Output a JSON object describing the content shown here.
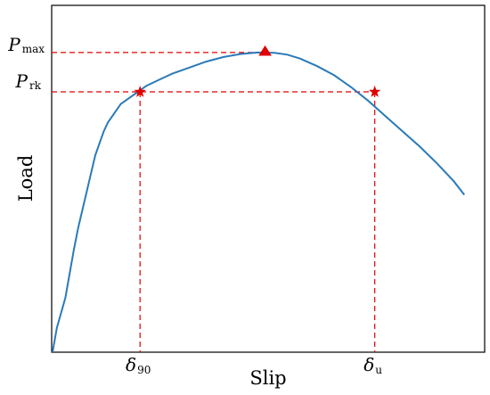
{
  "chart_data": {
    "type": "line",
    "title": "",
    "xlabel": "Slip",
    "ylabel": "Load",
    "xlim": [
      0,
      100
    ],
    "ylim": [
      0,
      100
    ],
    "grid": false,
    "legend": "none",
    "series": [
      {
        "color": "#2a7ab8",
        "x": [
          0,
          1,
          2,
          3,
          4,
          5,
          6,
          7,
          8,
          9,
          10,
          11,
          12,
          13,
          14,
          15,
          16,
          18,
          20,
          22,
          25,
          28,
          30,
          33,
          36,
          40,
          44,
          48,
          52,
          55,
          58,
          62,
          66,
          70,
          74,
          78,
          82,
          86,
          90,
          94,
          96.5
        ],
        "y": [
          0,
          8,
          13,
          18,
          26,
          34,
          41,
          47,
          53,
          59,
          65,
          69,
          73,
          76,
          78,
          80,
          82,
          84,
          86,
          88,
          90,
          92,
          93,
          94.5,
          96,
          97.5,
          98.5,
          99,
          98.9,
          98.3,
          97,
          94.5,
          91.5,
          87.5,
          83,
          78,
          73,
          68,
          62.5,
          56.5,
          52
        ]
      }
    ],
    "annotations": {
      "p_max": {
        "symbol": "P",
        "subscript": "max",
        "x": 49.8,
        "y": 99,
        "marker": "triangle",
        "color": "#e00000"
      },
      "p_rk": {
        "symbol": "P",
        "subscript": "rk",
        "y": 86
      },
      "delta_90": {
        "symbol": "δ",
        "subscript": "90",
        "x": 20.5,
        "y": 86,
        "marker": "star",
        "color": "#e00000"
      },
      "delta_u": {
        "symbol": "δ",
        "subscript": "u",
        "x": 75.5,
        "y": 86,
        "marker": "star",
        "color": "#e00000"
      }
    },
    "guide_color": "#e00000"
  }
}
